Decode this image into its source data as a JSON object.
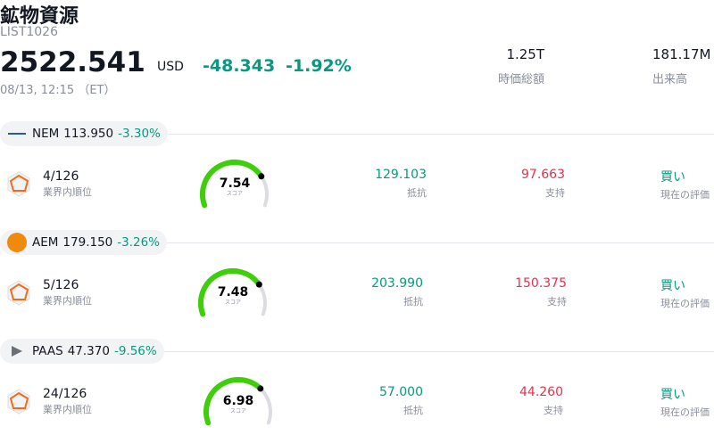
{
  "header": {
    "title": "鉱物資源",
    "code": "LIST1026",
    "price": "2522.541",
    "currency": "USD",
    "change": "-48.343",
    "change_pct": "-1.92%",
    "time": "08/13, 12:15 （ET）",
    "stats": [
      {
        "value": "1.25T",
        "label": "時価総額"
      },
      {
        "value": "181.17M",
        "label": "出来高"
      }
    ]
  },
  "gauge_range": [
    0,
    10
  ],
  "stocks": [
    {
      "ticker": "NEM",
      "price": "113.950",
      "change": "-3.30%",
      "rank": "4/126",
      "rank_label": "業界内順位",
      "score": 7.54,
      "score_label": "スコア",
      "resistance": "129.103",
      "resistance_label": "抵抗",
      "support": "97.663",
      "support_label": "支持",
      "rating": "買い",
      "rating_label": "現在の評価"
    },
    {
      "ticker": "AEM",
      "price": "179.150",
      "change": "-3.26%",
      "rank": "5/126",
      "rank_label": "業界内順位",
      "score": 7.48,
      "score_label": "スコア",
      "resistance": "203.990",
      "resistance_label": "抵抗",
      "support": "150.375",
      "support_label": "支持",
      "rating": "買い",
      "rating_label": "現在の評価"
    },
    {
      "ticker": "PAAS",
      "price": "47.370",
      "change": "-9.56%",
      "rank": "24/126",
      "rank_label": "業界内順位",
      "score": 6.98,
      "score_label": "スコア",
      "resistance": "57.000",
      "resistance_label": "抵抗",
      "support": "44.260",
      "support_label": "支持",
      "rating": "買い",
      "rating_label": "現在の評価"
    }
  ]
}
